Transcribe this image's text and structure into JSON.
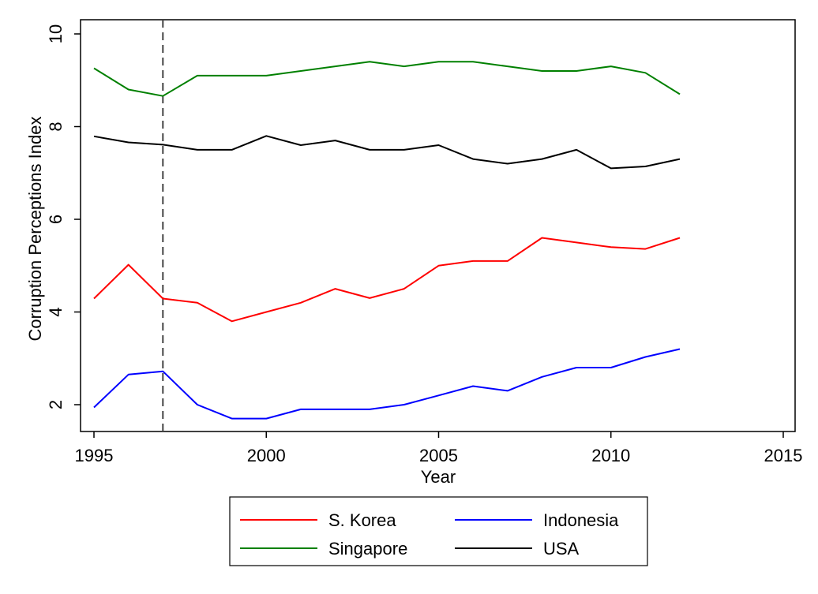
{
  "chart_data": {
    "type": "line",
    "title": "",
    "xlabel": "Year",
    "ylabel": "Corruption Perceptions Index",
    "xlim": [
      1995,
      2015
    ],
    "ylim": [
      1.5,
      10
    ],
    "xticks": [
      1995,
      2000,
      2005,
      2010,
      2015
    ],
    "yticks": [
      2,
      4,
      6,
      8,
      10
    ],
    "grid": false,
    "reference_line": {
      "x": 1997,
      "style": "dashed",
      "color": "#444444"
    },
    "x": [
      1995,
      1996,
      1997,
      1998,
      1999,
      2000,
      2001,
      2002,
      2003,
      2004,
      2005,
      2006,
      2007,
      2008,
      2009,
      2010,
      2011,
      2012
    ],
    "series": [
      {
        "name": "S. Korea",
        "color": "#ff0000",
        "values": [
          4.29,
          5.02,
          4.29,
          4.2,
          3.8,
          4.0,
          4.2,
          4.5,
          4.3,
          4.5,
          5.0,
          5.1,
          5.1,
          5.6,
          5.5,
          5.4,
          5.36,
          5.6
        ]
      },
      {
        "name": "Indonesia",
        "color": "#0000ff",
        "values": [
          1.94,
          2.65,
          2.72,
          2.0,
          1.7,
          1.7,
          1.9,
          1.9,
          1.9,
          2.0,
          2.2,
          2.4,
          2.3,
          2.6,
          2.8,
          2.8,
          3.03,
          3.2
        ]
      },
      {
        "name": "Singapore",
        "color": "#008000",
        "values": [
          9.26,
          8.8,
          8.66,
          9.1,
          9.1,
          9.1,
          9.2,
          9.3,
          9.4,
          9.3,
          9.4,
          9.4,
          9.3,
          9.2,
          9.2,
          9.3,
          9.16,
          8.7
        ]
      },
      {
        "name": "USA",
        "color": "#000000",
        "values": [
          7.79,
          7.66,
          7.61,
          7.5,
          7.5,
          7.8,
          7.6,
          7.7,
          7.5,
          7.5,
          7.6,
          7.3,
          7.2,
          7.3,
          7.5,
          7.1,
          7.14,
          7.3
        ]
      }
    ],
    "legend": {
      "placement": "bottom",
      "order": [
        "S. Korea",
        "Indonesia",
        "Singapore",
        "USA"
      ]
    }
  }
}
